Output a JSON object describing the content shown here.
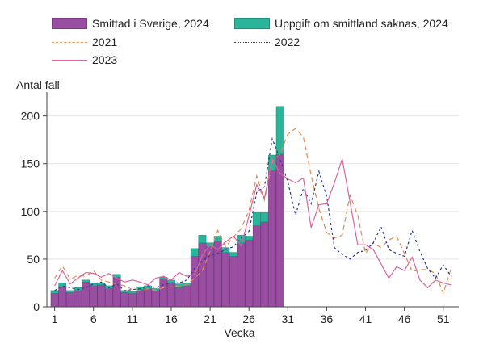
{
  "chart_data": {
    "type": "bar",
    "title": "",
    "xlabel": "Vecka",
    "ylabel": "Antal fall",
    "ylim": [
      0,
      220
    ],
    "xlim": [
      0,
      53
    ],
    "yticks": [
      0,
      50,
      100,
      150,
      200
    ],
    "xticks": [
      1,
      6,
      11,
      16,
      21,
      26,
      31,
      36,
      41,
      46,
      51
    ],
    "grid": true,
    "legend_position": "top",
    "bars": {
      "weeks": [
        1,
        2,
        3,
        4,
        5,
        6,
        7,
        8,
        9,
        10,
        11,
        12,
        13,
        14,
        15,
        16,
        17,
        18,
        19,
        20,
        21,
        22,
        23,
        24,
        25,
        26,
        27,
        28,
        29,
        30
      ],
      "stacked": true,
      "series": [
        {
          "name": "Smittad i Sverige, 2024",
          "color": "#9a4ea1",
          "values": [
            14,
            21,
            15,
            17,
            26,
            22,
            23,
            19,
            31,
            15,
            14,
            18,
            19,
            17,
            29,
            25,
            20,
            22,
            53,
            67,
            63,
            69,
            57,
            53,
            67,
            70,
            85,
            89,
            143,
            160
          ]
        },
        {
          "name": "Uppgift om smittland saknas, 2024",
          "color": "#2ab59a",
          "values": [
            3,
            4,
            2,
            3,
            2,
            3,
            2,
            3,
            3,
            2,
            2,
            3,
            3,
            2,
            2,
            3,
            4,
            3,
            8,
            8,
            4,
            5,
            5,
            4,
            8,
            4,
            14,
            10,
            16,
            50
          ]
        }
      ]
    },
    "lines": [
      {
        "name": "2021",
        "color": "#e58a4e",
        "dash": "6,4",
        "values": [
          30,
          43,
          29,
          33,
          32,
          38,
          28,
          26,
          24,
          22,
          18,
          17,
          19,
          17,
          20,
          21,
          22,
          23,
          30,
          38,
          58,
          80,
          63,
          73,
          82,
          101,
          137,
          112,
          152,
          160,
          181,
          187,
          178,
          138,
          103,
          78,
          72,
          75,
          117,
          96,
          56,
          67,
          62,
          70,
          74,
          56,
          37,
          39,
          39,
          35,
          14,
          40
        ]
      },
      {
        "name": "2022",
        "color": "#2b3a8f",
        "dash": "3,3",
        "values": [
          17,
          22,
          20,
          18,
          20,
          24,
          26,
          20,
          24,
          17,
          18,
          19,
          22,
          20,
          23,
          25,
          25,
          28,
          40,
          48,
          54,
          56,
          60,
          63,
          72,
          79,
          120,
          126,
          176,
          155,
          131,
          96,
          124,
          108,
          142,
          116,
          62,
          55,
          50,
          57,
          59,
          67,
          84,
          60,
          56,
          53,
          80,
          58,
          40,
          30,
          44,
          32
        ]
      },
      {
        "name": "2023",
        "color": "#d7669e",
        "dash": "",
        "values": [
          22,
          38,
          24,
          30,
          36,
          35,
          31,
          35,
          30,
          26,
          28,
          26,
          23,
          30,
          32,
          28,
          36,
          32,
          34,
          54,
          65,
          60,
          68,
          74,
          64,
          95,
          128,
          114,
          155,
          140,
          134,
          130,
          135,
          83,
          107,
          108,
          130,
          155,
          110,
          65,
          65,
          60,
          45,
          30,
          42,
          38,
          52,
          28,
          20,
          28,
          25,
          23
        ]
      }
    ]
  }
}
